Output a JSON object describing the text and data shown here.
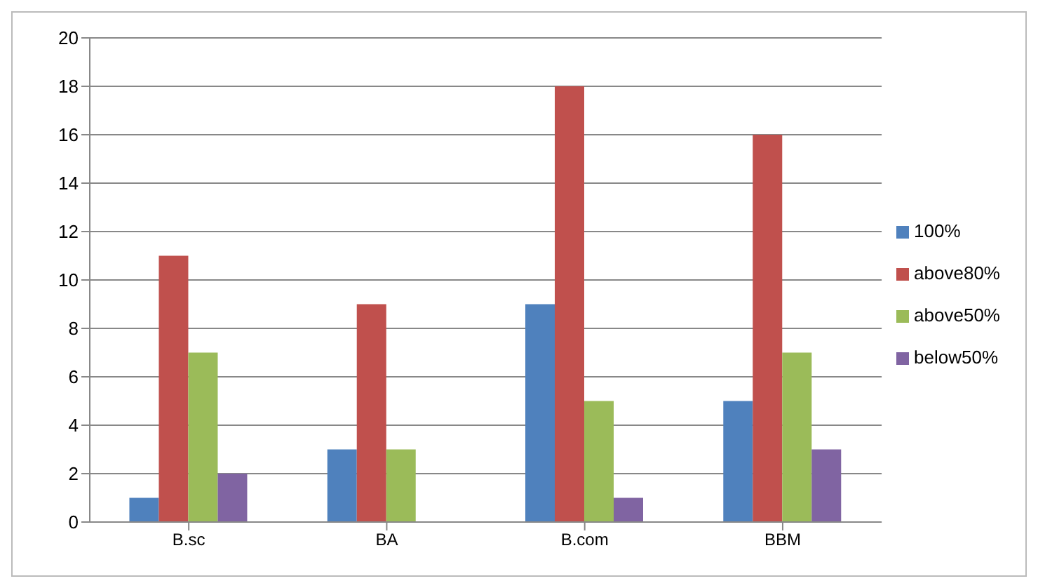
{
  "chart_data": {
    "type": "bar",
    "categories": [
      "B.sc",
      "BA",
      "B.com",
      "BBM"
    ],
    "series": [
      {
        "name": "100%",
        "color": "#4f81bd",
        "values": [
          1,
          3,
          9,
          5
        ]
      },
      {
        "name": "above80%",
        "color": "#c0504d",
        "values": [
          11,
          9,
          18,
          16
        ]
      },
      {
        "name": "above50%",
        "color": "#9bbb59",
        "values": [
          7,
          3,
          5,
          7
        ]
      },
      {
        "name": "below50%",
        "color": "#8064a2",
        "values": [
          2,
          null,
          1,
          3
        ]
      }
    ],
    "ylim": [
      0,
      20
    ],
    "yticks": [
      0,
      2,
      4,
      6,
      8,
      10,
      12,
      14,
      16,
      18,
      20
    ],
    "grid": "y",
    "legend": "right"
  }
}
